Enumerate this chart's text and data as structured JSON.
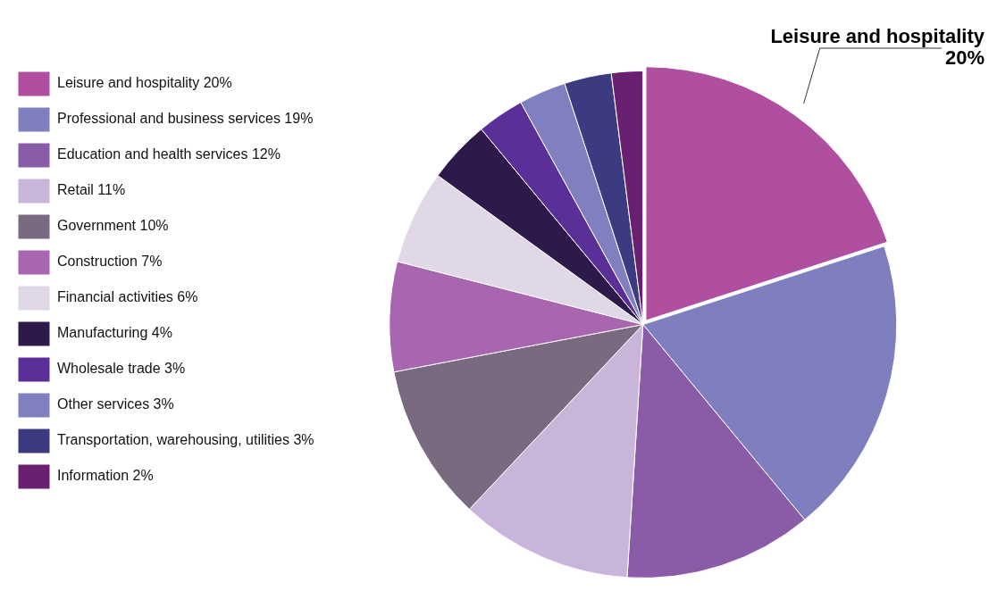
{
  "chart_data": {
    "type": "pie",
    "categories": [
      "Leisure and hospitality 20%",
      "Professional and business services 19%",
      "Education and health services 12%",
      "Retail 11%",
      "Government 10%",
      "Construction 7%",
      "Financial activities 6%",
      "Manufacturing 4%",
      "Wholesale trade 3%",
      "Other services 3%",
      "Transportation, warehousing, utilities 3%",
      "Information 2%"
    ],
    "values": [
      20,
      19,
      12,
      11,
      10,
      7,
      6,
      4,
      3,
      3,
      3,
      2
    ],
    "colors": [
      "#b04fa0",
      "#7f7fc0",
      "#8a5ca8",
      "#c9b5da",
      "#7a6a80",
      "#a866b0",
      "#e0d8e6",
      "#2e1a4a",
      "#5a2f98",
      "#8080c0",
      "#3c3a80",
      "#6a2070"
    ],
    "legend": "left",
    "annotations": [
      "Leisure and hospitality\n20%"
    ]
  }
}
